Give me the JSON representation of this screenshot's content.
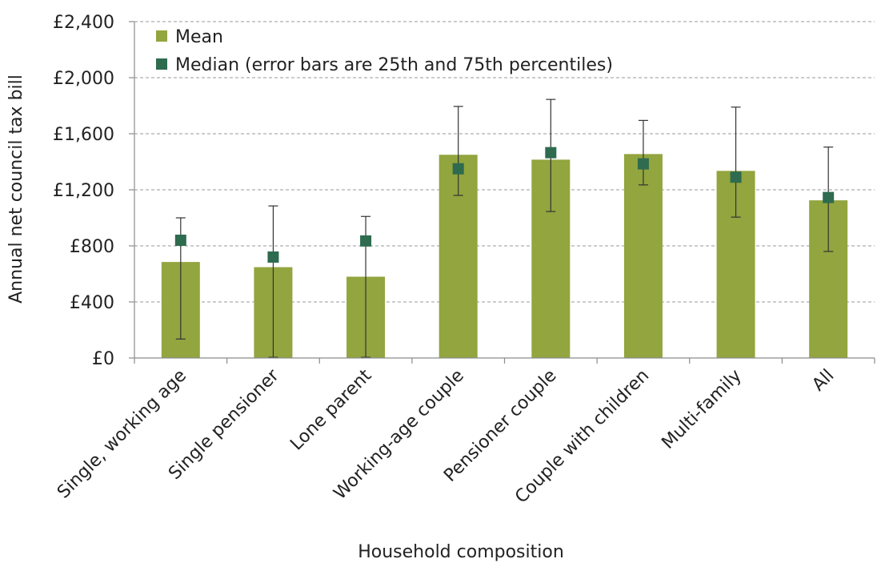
{
  "chart_data": {
    "type": "bar",
    "title": "",
    "xlabel": "Household composition",
    "ylabel": "Annual net council tax bill",
    "ylim": [
      0,
      2400
    ],
    "yticks": [
      0,
      400,
      800,
      1200,
      1600,
      2000,
      2400
    ],
    "ytick_labels": [
      "£0",
      "£400",
      "£800",
      "£1,200",
      "£1,600",
      "£2,000",
      "£2,400"
    ],
    "grid": true,
    "legend_position": "top-left",
    "categories": [
      "Single, working age",
      "Single pensioner",
      "Lone parent",
      "Working-age couple",
      "Pensioner couple",
      "Couple with children",
      "Multi-family",
      "All"
    ],
    "series": [
      {
        "name": "Mean",
        "kind": "bar",
        "color": "#92a53e",
        "values": [
          685,
          648,
          580,
          1450,
          1415,
          1455,
          1335,
          1125
        ]
      },
      {
        "name": "Median (error bars are 25th and 75th percentiles)",
        "kind": "marker",
        "color": "#2e6b4f",
        "values": [
          840,
          720,
          835,
          1350,
          1465,
          1385,
          1290,
          1145
        ],
        "p25": [
          135,
          5,
          5,
          1160,
          1045,
          1235,
          1005,
          760
        ],
        "p75": [
          1000,
          1085,
          1010,
          1795,
          1845,
          1695,
          1790,
          1505
        ]
      }
    ]
  }
}
